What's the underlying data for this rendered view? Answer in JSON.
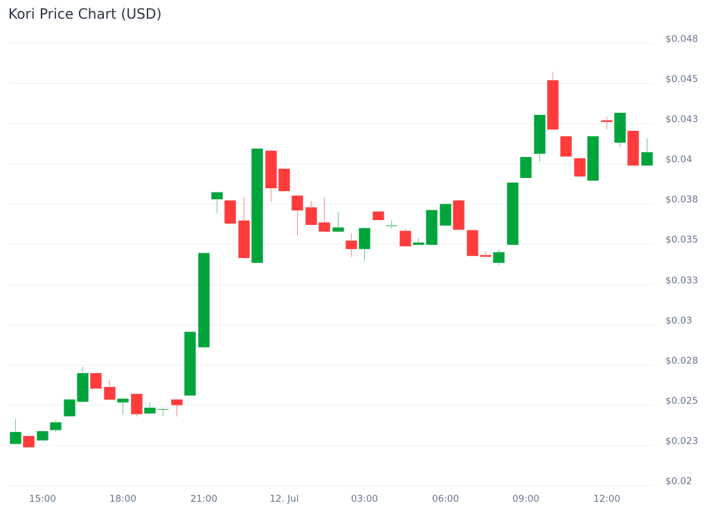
{
  "header": {
    "title": "Kori Price Chart (USD)"
  },
  "colors": {
    "up": "#00a43c",
    "down": "#ff3b3b",
    "grid": "#eef0f4",
    "axis_text": "#66758f",
    "title": "#2b3544"
  },
  "chart_data": {
    "type": "candlestick",
    "title": "Kori Price Chart (USD)",
    "xlabel": "",
    "ylabel": "",
    "y_axis_position": "right",
    "ylim": [
      0.02,
      0.048
    ],
    "grid": true,
    "legend": null,
    "y_ticks": [
      {
        "value": 0.048,
        "label": "$0.048"
      },
      {
        "value": 0.0455,
        "label": "$0.045"
      },
      {
        "value": 0.043,
        "label": "$0.043"
      },
      {
        "value": 0.0405,
        "label": "$0.04"
      },
      {
        "value": 0.038,
        "label": "$0.038"
      },
      {
        "value": 0.0355,
        "label": "$0.035"
      },
      {
        "value": 0.033,
        "label": "$0.033"
      },
      {
        "value": 0.0305,
        "label": "$0.03"
      },
      {
        "value": 0.028,
        "label": "$0.028"
      },
      {
        "value": 0.0255,
        "label": "$0.025"
      },
      {
        "value": 0.023,
        "label": "$0.023"
      },
      {
        "value": 0.0205,
        "label": "$0.02"
      }
    ],
    "x_ticks": [
      {
        "index": 2,
        "label": "15:00"
      },
      {
        "index": 8,
        "label": "18:00"
      },
      {
        "index": 14,
        "label": "21:00"
      },
      {
        "index": 20,
        "label": "12. Jul"
      },
      {
        "index": 26,
        "label": "03:00"
      },
      {
        "index": 32,
        "label": "06:00"
      },
      {
        "index": 38,
        "label": "09:00"
      },
      {
        "index": 44,
        "label": "12:00"
      }
    ],
    "interval": "30m",
    "candles": [
      {
        "t": "11 Jul 14:00",
        "o": 0.02305,
        "h": 0.0246,
        "l": 0.02305,
        "c": 0.02382
      },
      {
        "t": "11 Jul 14:30",
        "o": 0.02357,
        "h": 0.02357,
        "l": 0.02284,
        "c": 0.02284
      },
      {
        "t": "11 Jul 15:00",
        "o": 0.02327,
        "h": 0.02387,
        "l": 0.02327,
        "c": 0.02387
      },
      {
        "t": "11 Jul 15:30",
        "o": 0.02391,
        "h": 0.02455,
        "l": 0.02378,
        "c": 0.02442
      },
      {
        "t": "11 Jul 16:00",
        "o": 0.02477,
        "h": 0.02584,
        "l": 0.02477,
        "c": 0.02584
      },
      {
        "t": "11 Jul 16:30",
        "o": 0.02567,
        "h": 0.02786,
        "l": 0.02567,
        "c": 0.02748
      },
      {
        "t": "11 Jul 17:00",
        "o": 0.02748,
        "h": 0.02748,
        "l": 0.02649,
        "c": 0.02649
      },
      {
        "t": "11 Jul 17:30",
        "o": 0.02662,
        "h": 0.02705,
        "l": 0.0258,
        "c": 0.0258
      },
      {
        "t": "11 Jul 18:00",
        "o": 0.02563,
        "h": 0.02589,
        "l": 0.0249,
        "c": 0.02589
      },
      {
        "t": "11 Jul 18:30",
        "o": 0.02619,
        "h": 0.02619,
        "l": 0.02477,
        "c": 0.0249
      },
      {
        "t": "11 Jul 19:00",
        "o": 0.02494,
        "h": 0.02563,
        "l": 0.02494,
        "c": 0.02533
      },
      {
        "t": "11 Jul 19:30",
        "o": 0.0252,
        "h": 0.02533,
        "l": 0.02481,
        "c": 0.02524
      },
      {
        "t": "11 Jul 20:00",
        "o": 0.02584,
        "h": 0.02584,
        "l": 0.02477,
        "c": 0.02546
      },
      {
        "t": "11 Jul 20:30",
        "o": 0.02606,
        "h": 0.03005,
        "l": 0.02606,
        "c": 0.03005
      },
      {
        "t": "11 Jul 21:00",
        "o": 0.02906,
        "h": 0.03495,
        "l": 0.02906,
        "c": 0.03495
      },
      {
        "t": "11 Jul 21:30",
        "o": 0.03826,
        "h": 0.03873,
        "l": 0.0374,
        "c": 0.03873
      },
      {
        "t": "11 Jul 22:00",
        "o": 0.03822,
        "h": 0.03822,
        "l": 0.03675,
        "c": 0.03675
      },
      {
        "t": "11 Jul 22:30",
        "o": 0.03697,
        "h": 0.03843,
        "l": 0.03461,
        "c": 0.03461
      },
      {
        "t": "11 Jul 23:00",
        "o": 0.03431,
        "h": 0.04144,
        "l": 0.03431,
        "c": 0.04144
      },
      {
        "t": "11 Jul 23:30",
        "o": 0.04131,
        "h": 0.04131,
        "l": 0.03813,
        "c": 0.03895
      },
      {
        "t": "12 Jul 00:00",
        "o": 0.04019,
        "h": 0.04019,
        "l": 0.03877,
        "c": 0.03877
      },
      {
        "t": "12 Jul 00:30",
        "o": 0.03852,
        "h": 0.03852,
        "l": 0.03603,
        "c": 0.03757
      },
      {
        "t": "12 Jul 01:00",
        "o": 0.03779,
        "h": 0.03817,
        "l": 0.03667,
        "c": 0.03667
      },
      {
        "t": "12 Jul 01:30",
        "o": 0.03685,
        "h": 0.03839,
        "l": 0.03625,
        "c": 0.03625
      },
      {
        "t": "12 Jul 02:00",
        "o": 0.03625,
        "h": 0.03749,
        "l": 0.03625,
        "c": 0.03654
      },
      {
        "t": "12 Jul 02:30",
        "o": 0.03572,
        "h": 0.03615,
        "l": 0.03469,
        "c": 0.03517
      },
      {
        "t": "12 Jul 03:00",
        "o": 0.03517,
        "h": 0.0365,
        "l": 0.03443,
        "c": 0.0365
      },
      {
        "t": "12 Jul 03:30",
        "o": 0.03753,
        "h": 0.03753,
        "l": 0.03697,
        "c": 0.03697
      },
      {
        "t": "12 Jul 04:00",
        "o": 0.03663,
        "h": 0.03697,
        "l": 0.03646,
        "c": 0.03667
      },
      {
        "t": "12 Jul 04:30",
        "o": 0.03633,
        "h": 0.03646,
        "l": 0.03534,
        "c": 0.03534
      },
      {
        "t": "12 Jul 05:00",
        "o": 0.03543,
        "h": 0.03586,
        "l": 0.03543,
        "c": 0.0356
      },
      {
        "t": "12 Jul 05:30",
        "o": 0.03543,
        "h": 0.03762,
        "l": 0.03543,
        "c": 0.03762
      },
      {
        "t": "12 Jul 06:00",
        "o": 0.03663,
        "h": 0.038,
        "l": 0.03663,
        "c": 0.038
      },
      {
        "t": "12 Jul 06:30",
        "o": 0.03822,
        "h": 0.03822,
        "l": 0.03637,
        "c": 0.03637
      },
      {
        "t": "12 Jul 07:00",
        "o": 0.03637,
        "h": 0.03637,
        "l": 0.03474,
        "c": 0.03474
      },
      {
        "t": "12 Jul 07:30",
        "o": 0.03482,
        "h": 0.03504,
        "l": 0.03469,
        "c": 0.03469
      },
      {
        "t": "12 Jul 08:00",
        "o": 0.03431,
        "h": 0.03517,
        "l": 0.03418,
        "c": 0.035
      },
      {
        "t": "12 Jul 08:30",
        "o": 0.03543,
        "h": 0.03933,
        "l": 0.03543,
        "c": 0.03933
      },
      {
        "t": "12 Jul 09:00",
        "o": 0.03959,
        "h": 0.04092,
        "l": 0.03959,
        "c": 0.04092
      },
      {
        "t": "12 Jul 09:30",
        "o": 0.04109,
        "h": 0.04354,
        "l": 0.04062,
        "c": 0.04354
      },
      {
        "t": "12 Jul 10:00",
        "o": 0.04569,
        "h": 0.04621,
        "l": 0.0426,
        "c": 0.0426
      },
      {
        "t": "12 Jul 10:30",
        "o": 0.04221,
        "h": 0.04221,
        "l": 0.04092,
        "c": 0.04092
      },
      {
        "t": "12 Jul 11:00",
        "o": 0.04084,
        "h": 0.04084,
        "l": 0.03968,
        "c": 0.03968
      },
      {
        "t": "12 Jul 11:30",
        "o": 0.03942,
        "h": 0.04221,
        "l": 0.03942,
        "c": 0.04221
      },
      {
        "t": "12 Jul 12:00",
        "o": 0.0432,
        "h": 0.04341,
        "l": 0.04264,
        "c": 0.04307
      },
      {
        "t": "12 Jul 12:30",
        "o": 0.04178,
        "h": 0.04367,
        "l": 0.04152,
        "c": 0.04367
      },
      {
        "t": "12 Jul 13:00",
        "o": 0.04255,
        "h": 0.04255,
        "l": 0.04036,
        "c": 0.04036
      },
      {
        "t": "12 Jul 13:30",
        "o": 0.04036,
        "h": 0.04208,
        "l": 0.04036,
        "c": 0.04122
      }
    ]
  }
}
